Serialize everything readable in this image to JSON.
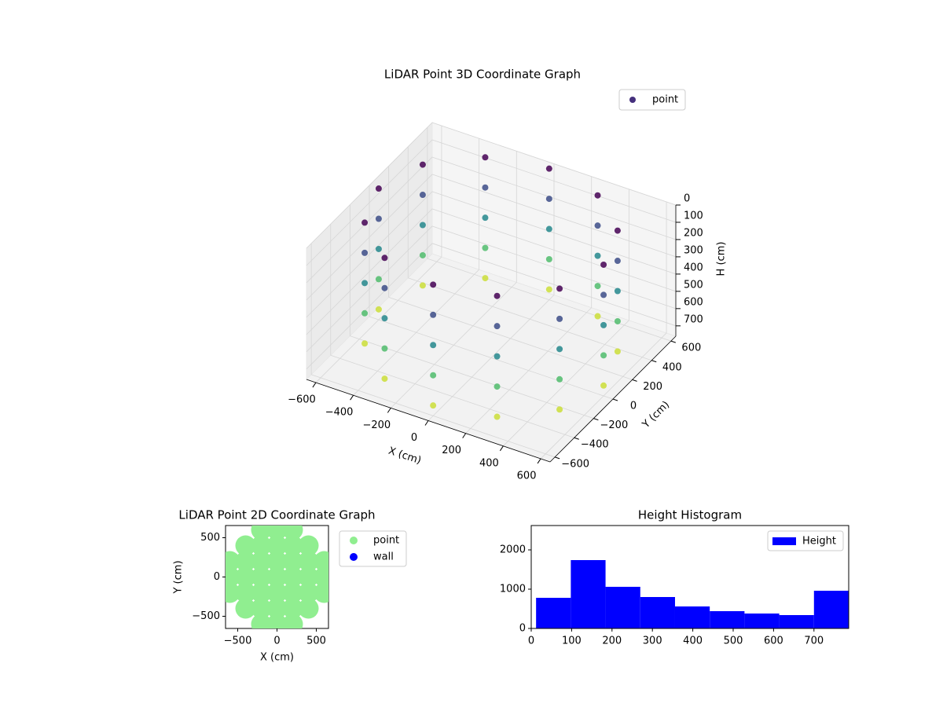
{
  "chart_data": [
    {
      "type": "scatter3d",
      "title": "LiDAR Point 3D Coordinate Graph",
      "xlabel": "X (cm)",
      "ylabel": "Y (cm)",
      "zlabel": "H (cm)",
      "xlim": [
        -650,
        650
      ],
      "ylim": [
        -650,
        650
      ],
      "zlim": [
        0,
        760
      ],
      "z_inverted": true,
      "xticks": [
        {
          "value": -600,
          "label": "−600"
        },
        {
          "value": -400,
          "label": "−400"
        },
        {
          "value": -200,
          "label": "−200"
        },
        0,
        200,
        400,
        600
      ],
      "yticks": [
        {
          "value": -600,
          "label": "−600"
        },
        {
          "value": -400,
          "label": "−400"
        },
        {
          "value": -200,
          "label": "−200"
        },
        0,
        200,
        400,
        600
      ],
      "zticks": [
        0,
        100,
        200,
        300,
        400,
        500,
        600,
        700
      ],
      "legend": "upper right",
      "series": [
        {
          "name": "point",
          "color": "#45307d",
          "colormap": "viridis",
          "x": [
            600,
            520,
            300,
            0,
            -300,
            -520,
            -600,
            -520,
            -300,
            0,
            300,
            520,
            600,
            520,
            300,
            0,
            -300,
            -520,
            -600,
            -520,
            -300,
            0,
            300,
            520,
            600,
            520,
            300,
            0,
            -300,
            -520,
            -600,
            -520,
            -300,
            0,
            300,
            520,
            600,
            520,
            300,
            0,
            -300,
            -520,
            -600,
            -520,
            -300,
            0,
            300,
            520,
            600,
            520,
            300,
            0,
            -300,
            -520,
            -600,
            -520,
            -300,
            0,
            300,
            520
          ],
          "y": [
            0,
            300,
            520,
            600,
            520,
            300,
            0,
            -300,
            -520,
            -600,
            -520,
            -300,
            0,
            300,
            520,
            600,
            520,
            300,
            0,
            -300,
            -520,
            -600,
            -520,
            -300,
            0,
            300,
            520,
            600,
            520,
            300,
            0,
            -300,
            -520,
            -600,
            -520,
            -300,
            0,
            300,
            520,
            600,
            520,
            300,
            0,
            -300,
            -520,
            -600,
            -520,
            -300,
            0,
            300,
            520,
            600,
            520,
            300,
            0,
            -300,
            -520,
            -600,
            -520,
            -300
          ],
          "z": [
            0,
            0,
            0,
            0,
            0,
            0,
            0,
            0,
            0,
            0,
            0,
            0,
            175,
            175,
            175,
            175,
            175,
            175,
            175,
            175,
            175,
            175,
            175,
            175,
            350,
            350,
            350,
            350,
            350,
            350,
            350,
            350,
            350,
            350,
            350,
            350,
            525,
            525,
            525,
            525,
            525,
            525,
            525,
            525,
            525,
            525,
            525,
            525,
            700,
            700,
            700,
            700,
            700,
            700,
            700,
            700,
            700,
            700,
            700,
            700
          ]
        }
      ]
    },
    {
      "type": "scatter",
      "title": "LiDAR Point 2D Coordinate Graph",
      "xlabel": "X (cm)",
      "ylabel": "Y (cm)",
      "xlim": [
        -655,
        655
      ],
      "ylim": [
        -655,
        655
      ],
      "xticks": [
        {
          "value": -500,
          "label": "−500"
        },
        0,
        500
      ],
      "yticks": [
        {
          "value": -500,
          "label": "−500"
        },
        0,
        500
      ],
      "legend": "outside right",
      "series": [
        {
          "name": "point",
          "color": "#90ee90",
          "x": [
            -200,
            0,
            200,
            -400,
            -200,
            0,
            200,
            400,
            -600,
            -400,
            -200,
            0,
            200,
            400,
            600,
            -600,
            -400,
            -200,
            0,
            200,
            400,
            600,
            -600,
            -400,
            -200,
            0,
            200,
            400,
            600,
            -400,
            -200,
            0,
            200,
            400,
            -200,
            0,
            200
          ],
          "y": [
            -600,
            -600,
            -600,
            -400,
            -400,
            -400,
            -400,
            -400,
            -200,
            -200,
            -200,
            -200,
            -200,
            -200,
            -200,
            0,
            0,
            0,
            0,
            0,
            0,
            0,
            200,
            200,
            200,
            200,
            200,
            200,
            200,
            400,
            400,
            400,
            400,
            400,
            600,
            600,
            600
          ]
        },
        {
          "name": "wall",
          "color": "#0000ff",
          "x": [],
          "y": []
        }
      ]
    },
    {
      "type": "histogram",
      "title": "Height Histogram",
      "name": "Height",
      "color": "#0000ff",
      "bins": [
        12,
        98,
        184,
        270,
        356,
        442,
        528,
        614,
        700,
        786
      ],
      "values": [
        780,
        1740,
        1060,
        800,
        560,
        440,
        380,
        340,
        960
      ],
      "xlim": [
        0,
        786
      ],
      "ylim": [
        0,
        2620
      ],
      "xticks": [
        0,
        100,
        200,
        300,
        400,
        500,
        600,
        700
      ],
      "yticks": [
        0,
        1000,
        2000
      ],
      "legend": "upper right"
    }
  ]
}
